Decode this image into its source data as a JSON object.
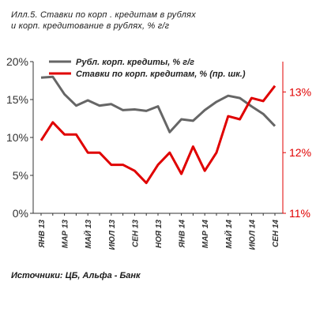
{
  "title": {
    "line1": "Илл.5.  Ставки по корп . кредитам в рублях",
    "line2": "и корп. кредитование в рублях, % г/г"
  },
  "source": "Источники: ЦБ, Альфа - Банк",
  "chart_data": {
    "type": "line",
    "categories": [
      "ЯНВ 13",
      "ФЕВ 13",
      "МАР 13",
      "АПР 13",
      "МАЙ 13",
      "ИЮН 13",
      "ИЮЛ 13",
      "АВГ 13",
      "СЕН 13",
      "ОКТ 13",
      "НОЯ 13",
      "ДЕК 13",
      "ЯНВ 14",
      "ФЕВ 14",
      "МАР 14",
      "АПР 14",
      "МАЙ 14",
      "ИЮН 14",
      "ИЮЛ 14",
      "АВГ 14",
      "СЕН 14"
    ],
    "tick_labels": [
      "ЯНВ 13",
      "МАР 13",
      "МАЙ 13",
      "ИЮЛ 13",
      "СЕН 13",
      "НОЯ 13",
      "ЯНВ 14",
      "МАР 14",
      "МАЙ 14",
      "ИЮЛ 14",
      "СЕН 14"
    ],
    "series": [
      {
        "name": "Рубл. корп. кредиты, % г/г",
        "axis": "left",
        "color": "#666666",
        "values": [
          17.9,
          18.0,
          15.7,
          14.2,
          14.9,
          14.2,
          14.4,
          13.6,
          13.7,
          13.5,
          14.1,
          10.7,
          12.4,
          12.2,
          13.6,
          14.7,
          15.5,
          15.2,
          14.1,
          13.1,
          11.5
        ]
      },
      {
        "name": "Ставки по корп. кредитам, % (пр. шк.)",
        "axis": "right",
        "color": "#e00000",
        "values": [
          12.2,
          12.5,
          12.3,
          12.3,
          12.0,
          12.0,
          11.8,
          11.8,
          11.7,
          11.5,
          11.8,
          12.0,
          11.65,
          12.1,
          11.7,
          12.0,
          12.6,
          12.55,
          12.9,
          12.85,
          13.1
        ]
      }
    ],
    "y_left": {
      "ticks": [
        "0%",
        "5%",
        "10%",
        "15%",
        "20%"
      ],
      "ylim": [
        0,
        20
      ]
    },
    "y_right": {
      "ticks": [
        "11%",
        "12%",
        "13%"
      ],
      "ylim": [
        11,
        13.5
      ]
    },
    "legend_placement": "top",
    "grid": false
  }
}
